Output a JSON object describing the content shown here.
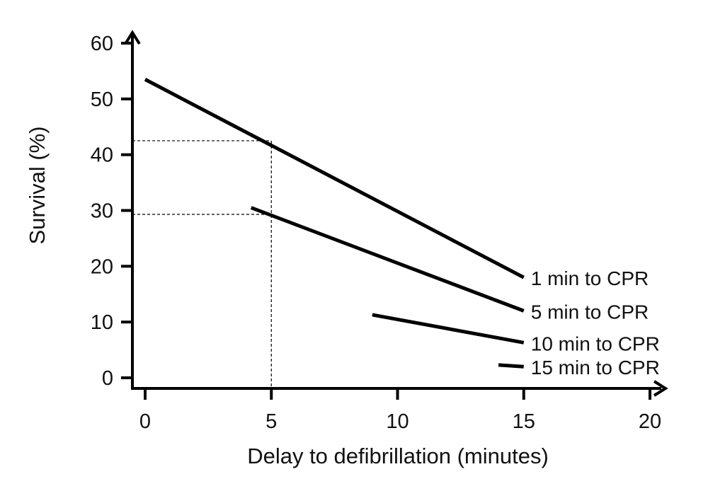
{
  "chart_data": {
    "type": "line",
    "title": "",
    "xlabel": "Delay to defibrillation (minutes)",
    "ylabel": "Survival (%)",
    "xlim": [
      0,
      20
    ],
    "ylim": [
      0,
      60
    ],
    "x_ticks": [
      0,
      5,
      10,
      15,
      20
    ],
    "y_ticks": [
      0,
      10,
      20,
      30,
      40,
      50,
      60
    ],
    "grid": false,
    "legend": "direct labels at line ends",
    "series": [
      {
        "name": "1 min to CPR",
        "x": [
          0,
          15
        ],
        "y": [
          53.5,
          18
        ]
      },
      {
        "name": "5 min to CPR",
        "x": [
          4.2,
          15
        ],
        "y": [
          30.5,
          12
        ]
      },
      {
        "name": "10 min to CPR",
        "x": [
          9,
          15
        ],
        "y": [
          11.3,
          6.3
        ]
      },
      {
        "name": "15 min to CPR",
        "x": [
          14,
          15
        ],
        "y": [
          2.3,
          2
        ]
      }
    ],
    "reference_lines": [
      {
        "x": 5,
        "y": 42.5
      },
      {
        "x": 5,
        "y": 29.3
      }
    ]
  }
}
